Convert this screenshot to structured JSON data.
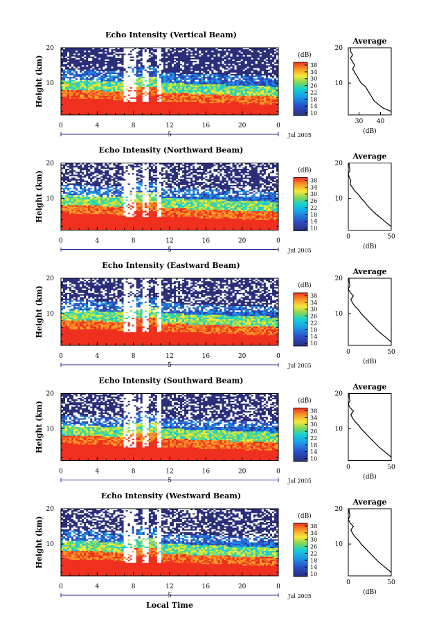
{
  "chart_data": [
    {
      "type": "heatmap",
      "title": "Echo Intensity (Vertical Beam)",
      "ylabel": "Height (km)",
      "yticks": [
        "20",
        "10"
      ],
      "xticks": [
        "0",
        "4",
        "8",
        "12",
        "16",
        "20",
        "0"
      ],
      "day_label": "5",
      "date_label": "Jul 2005",
      "colorbar_unit": "(dB)",
      "colorbar_ticks": [
        "38",
        "34",
        "30",
        "26",
        "22",
        "18",
        "14",
        "10"
      ],
      "profile_title": "Average",
      "profile_xticks": [
        "30",
        "40"
      ],
      "profile_xlim": [
        25,
        45
      ],
      "profile_xlabel": "(dB)",
      "profile_yticks": [
        "20",
        "10"
      ],
      "profile": {
        "height": [
          2,
          3,
          4,
          5,
          6,
          7,
          8,
          9,
          10,
          11,
          12,
          13,
          14,
          15,
          16,
          17,
          18,
          19,
          20
        ],
        "db": [
          45,
          41,
          39,
          37,
          36,
          35,
          34,
          33,
          31,
          30,
          29,
          28,
          27,
          28,
          27,
          26,
          27,
          26,
          26
        ]
      }
    },
    {
      "type": "heatmap",
      "title": "Echo Intensity (Northward Beam)",
      "ylabel": "Height (km)",
      "yticks": [
        "20",
        "10"
      ],
      "xticks": [
        "0",
        "4",
        "8",
        "12",
        "16",
        "20",
        "0"
      ],
      "day_label": "5",
      "date_label": "Jul 2005",
      "colorbar_unit": "(dB)",
      "colorbar_ticks": [
        "38",
        "34",
        "30",
        "26",
        "22",
        "18",
        "14",
        "10"
      ],
      "profile_title": "Average",
      "profile_xticks": [
        "0",
        "50"
      ],
      "profile_xlim": [
        0,
        50
      ],
      "profile_xlabel": "(dB)",
      "profile_yticks": [
        "20",
        "10"
      ],
      "profile": {
        "height": [
          2,
          3,
          4,
          5,
          6,
          7,
          8,
          9,
          10,
          11,
          12,
          13,
          14,
          15,
          16,
          17,
          18,
          19,
          20
        ],
        "db": [
          50,
          45,
          40,
          35,
          30,
          26,
          22,
          19,
          15,
          12,
          8,
          5,
          2,
          3,
          1,
          0,
          2,
          1,
          1
        ]
      }
    },
    {
      "type": "heatmap",
      "title": "Echo Intensity (Eastward Beam)",
      "ylabel": "Height (km)",
      "yticks": [
        "20",
        "10"
      ],
      "xticks": [
        "0",
        "4",
        "8",
        "12",
        "16",
        "20",
        "0"
      ],
      "day_label": "5",
      "date_label": "Jul 2005",
      "colorbar_unit": "(dB)",
      "colorbar_ticks": [
        "38",
        "34",
        "30",
        "26",
        "22",
        "18",
        "14",
        "10"
      ],
      "profile_title": "Average",
      "profile_xticks": [
        "0",
        "50"
      ],
      "profile_xlim": [
        0,
        50
      ],
      "profile_xlabel": "(dB)",
      "profile_yticks": [
        "20",
        "10"
      ],
      "profile": {
        "height": [
          2,
          3,
          4,
          5,
          6,
          7,
          8,
          9,
          10,
          11,
          12,
          13,
          14,
          15,
          16,
          17,
          18,
          19,
          20
        ],
        "db": [
          50,
          45,
          40,
          35,
          31,
          27,
          23,
          19,
          15,
          12,
          8,
          5,
          3,
          6,
          2,
          0,
          2,
          1,
          1
        ]
      }
    },
    {
      "type": "heatmap",
      "title": "Echo Intensity (Southward Beam)",
      "ylabel": "Height (km)",
      "yticks": [
        "20",
        "10"
      ],
      "xticks": [
        "0",
        "4",
        "8",
        "12",
        "16",
        "20",
        "0"
      ],
      "day_label": "5",
      "date_label": "Jul 2005",
      "colorbar_unit": "(dB)",
      "colorbar_ticks": [
        "38",
        "34",
        "30",
        "26",
        "22",
        "18",
        "14",
        "10"
      ],
      "profile_title": "Average",
      "profile_xticks": [
        "0",
        "50"
      ],
      "profile_xlim": [
        0,
        50
      ],
      "profile_xlabel": "(dB)",
      "profile_yticks": [
        "20",
        "10"
      ],
      "profile": {
        "height": [
          2,
          3,
          4,
          5,
          6,
          7,
          8,
          9,
          10,
          11,
          12,
          13,
          14,
          15,
          16,
          17,
          18,
          19,
          20
        ],
        "db": [
          50,
          45,
          40,
          35,
          31,
          27,
          23,
          19,
          15,
          12,
          8,
          5,
          3,
          6,
          2,
          0,
          2,
          1,
          1
        ]
      }
    },
    {
      "type": "heatmap",
      "title": "Echo Intensity (Westward Beam)",
      "ylabel": "Height (km)",
      "yticks": [
        "20",
        "10"
      ],
      "xticks": [
        "0",
        "4",
        "8",
        "12",
        "16",
        "20",
        "0"
      ],
      "day_label": "5",
      "date_label": "Jul 2005",
      "colorbar_unit": "(dB)",
      "colorbar_ticks": [
        "38",
        "34",
        "30",
        "26",
        "22",
        "18",
        "14",
        "10"
      ],
      "profile_title": "Average",
      "profile_xticks": [
        "0",
        "50"
      ],
      "profile_xlim": [
        0,
        50
      ],
      "profile_xlabel": "(dB)",
      "profile_yticks": [
        "20",
        "10"
      ],
      "profile": {
        "height": [
          2,
          3,
          4,
          5,
          6,
          7,
          8,
          9,
          10,
          11,
          12,
          13,
          14,
          15,
          16,
          17,
          18,
          19,
          20
        ],
        "db": [
          50,
          45,
          40,
          35,
          31,
          27,
          23,
          19,
          15,
          12,
          8,
          5,
          3,
          6,
          2,
          0,
          2,
          1,
          1
        ]
      }
    }
  ],
  "xlabel": "Local Time",
  "colors": {
    "dark": "#2b2f7a",
    "blue": "#2a5fd0",
    "cyan": "#14c8e0",
    "green": "#7ed65a",
    "yellow": "#f6e93a",
    "orange": "#f7a12a",
    "red": "#f0301e",
    "axis": "#000000",
    "tick_accent": "#2a2a9a"
  }
}
